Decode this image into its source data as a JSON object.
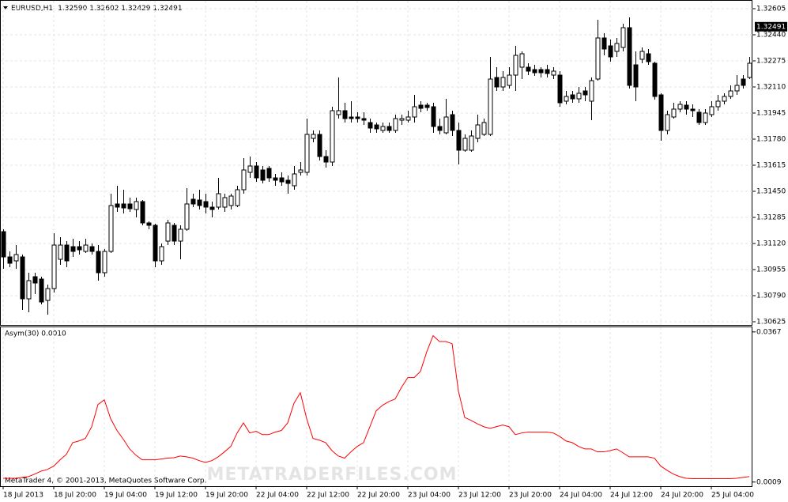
{
  "chart_data": [
    {
      "type": "candlestick",
      "title": "EURUSD,H1",
      "subtitle": "1.32590 1.32602 1.32429 1.32491",
      "ylim": [
        1.30605,
        1.3264
      ],
      "yticks": [
        1.32605,
        {
          "value": 1.3244,
          "label": "1.32440"
        },
        1.32275,
        {
          "value": 1.3211,
          "label": "1.32110"
        },
        1.31945,
        {
          "value": 1.3178,
          "label": "1.31780"
        },
        1.31615,
        {
          "value": 1.3145,
          "label": "1.31450"
        },
        1.31285,
        {
          "value": 1.3112,
          "label": "1.31120"
        },
        1.30955,
        {
          "value": 1.3079,
          "label": "1.30790"
        },
        1.30625
      ],
      "price_label": {
        "value": 1.32491,
        "label": "1.32491"
      },
      "grid": true,
      "up_color": "#ffffff",
      "down_color": "#000000",
      "open": [
        1.31195,
        1.31035,
        1.3101,
        1.31035,
        1.3077,
        1.3091,
        1.30895,
        1.3076,
        1.30835,
        1.3102,
        1.3111,
        1.311,
        1.311,
        1.3107,
        1.311,
        1.3107,
        1.30935,
        1.3107,
        1.3137,
        1.3137,
        1.3137,
        1.31335,
        1.31385,
        1.3125,
        1.31235,
        1.3101,
        1.31135,
        1.31235,
        1.31135,
        1.3121,
        1.314,
        1.31395,
        1.31385,
        1.3135,
        1.3135,
        1.3135,
        1.3136,
        1.3136,
        1.3146,
        1.3157,
        1.3161,
        1.31585,
        1.31595,
        1.31535,
        1.31535,
        1.3152,
        1.31485,
        1.3157,
        1.3157,
        1.31785,
        1.3181,
        1.3167,
        1.31635,
        1.31935,
        1.3196,
        1.3192,
        1.3192,
        1.3191,
        1.31885,
        1.3187,
        1.31835,
        1.3186,
        1.31835,
        1.319,
        1.319,
        1.3192,
        1.31995,
        1.31995,
        1.31985,
        1.3186,
        1.3182,
        1.31935,
        1.31835,
        1.3171,
        1.3171,
        1.31785,
        1.3181,
        1.3181,
        1.3217,
        1.3211,
        1.3212,
        1.32185,
        1.32235,
        1.32235,
        1.3222,
        1.3222,
        1.3222,
        1.32185,
        1.32185,
        1.3202,
        1.3206,
        1.32035,
        1.32085,
        1.3202,
        1.3216,
        1.3242,
        1.3237,
        1.32335,
        1.3236,
        1.32485,
        1.3225,
        1.32285,
        1.3232,
        1.3226,
        1.3206,
        1.31835,
        1.3192,
        1.3197,
        1.31995,
        1.3197,
        1.3195,
        1.31885,
        1.31935,
        1.31985,
        1.3202,
        1.3205,
        1.32085,
        1.3216,
        1.3217
      ],
      "high": [
        1.3121,
        1.3107,
        1.3111,
        1.3105,
        1.30935,
        1.30935,
        1.3091,
        1.3086,
        1.31185,
        1.3116,
        1.31135,
        1.3115,
        1.31135,
        1.3115,
        1.3112,
        1.3111,
        1.31085,
        1.31435,
        1.31485,
        1.3146,
        1.3141,
        1.3141,
        1.31395,
        1.3126,
        1.31245,
        1.3112,
        1.3127,
        1.3125,
        1.31235,
        1.3147,
        1.31435,
        1.3146,
        1.31435,
        1.31385,
        1.31535,
        1.31435,
        1.31435,
        1.31485,
        1.3166,
        1.3167,
        1.31635,
        1.3161,
        1.3161,
        1.3156,
        1.3157,
        1.3155,
        1.3161,
        1.31635,
        1.3191,
        1.31835,
        1.31835,
        1.3171,
        1.31985,
        1.3217,
        1.3201,
        1.3202,
        1.3195,
        1.3195,
        1.3191,
        1.31885,
        1.31885,
        1.31885,
        1.31935,
        1.31935,
        1.3196,
        1.3206,
        1.3202,
        1.3201,
        1.3201,
        1.3191,
        1.32035,
        1.3196,
        1.31885,
        1.3181,
        1.31835,
        1.31935,
        1.3191,
        1.323,
        1.32235,
        1.3221,
        1.32235,
        1.3237,
        1.32335,
        1.3226,
        1.3225,
        1.32235,
        1.3225,
        1.32235,
        1.3221,
        1.32085,
        1.32085,
        1.3211,
        1.3211,
        1.3217,
        1.32535,
        1.3245,
        1.3241,
        1.3242,
        1.3251,
        1.3255,
        1.32335,
        1.3236,
        1.3235,
        1.3227,
        1.3207,
        1.3196,
        1.3201,
        1.3202,
        1.3202,
        1.32,
        1.3197,
        1.3197,
        1.3202,
        1.3206,
        1.3207,
        1.3212,
        1.32185,
        1.32185,
        1.323
      ],
      "low": [
        1.3096,
        1.3097,
        1.3096,
        1.307,
        1.30685,
        1.308,
        1.30735,
        1.3067,
        1.3081,
        1.30985,
        1.3097,
        1.31035,
        1.3105,
        1.3106,
        1.3105,
        1.30885,
        1.3091,
        1.3106,
        1.3132,
        1.3131,
        1.3132,
        1.31285,
        1.31235,
        1.3121,
        1.3097,
        1.30985,
        1.3111,
        1.3111,
        1.3102,
        1.312,
        1.3135,
        1.31335,
        1.3131,
        1.31285,
        1.31335,
        1.3132,
        1.31335,
        1.3135,
        1.31435,
        1.31535,
        1.3151,
        1.315,
        1.3151,
        1.31485,
        1.31485,
        1.31435,
        1.3146,
        1.3155,
        1.3155,
        1.3176,
        1.31645,
        1.316,
        1.3161,
        1.3191,
        1.31885,
        1.31885,
        1.31885,
        1.3187,
        1.3182,
        1.3182,
        1.3182,
        1.3182,
        1.3182,
        1.3187,
        1.31885,
        1.31885,
        1.3195,
        1.3196,
        1.3182,
        1.3181,
        1.3181,
        1.318,
        1.3162,
        1.317,
        1.317,
        1.3176,
        1.318,
        1.318,
        1.32085,
        1.32085,
        1.321,
        1.32085,
        1.3216,
        1.32185,
        1.3218,
        1.3217,
        1.3217,
        1.3216,
        1.31985,
        1.32,
        1.3201,
        1.3201,
        1.3202,
        1.319,
        1.3215,
        1.3231,
        1.3227,
        1.323,
        1.32335,
        1.321,
        1.3202,
        1.3226,
        1.3225,
        1.3203,
        1.3177,
        1.3181,
        1.3191,
        1.3195,
        1.31935,
        1.3192,
        1.3187,
        1.3187,
        1.3192,
        1.3196,
        1.32,
        1.32035,
        1.3206,
        1.321,
        1.3216
      ],
      "close": [
        1.31035,
        1.30995,
        1.3105,
        1.3077,
        1.30885,
        1.3087,
        1.3075,
        1.30835,
        1.3111,
        1.3111,
        1.3101,
        1.3107,
        1.3108,
        1.3111,
        1.3107,
        1.30935,
        1.3107,
        1.3136,
        1.3135,
        1.31345,
        1.3134,
        1.31385,
        1.3125,
        1.31235,
        1.3101,
        1.311,
        1.3125,
        1.31135,
        1.3121,
        1.3137,
        1.3137,
        1.3136,
        1.3135,
        1.31335,
        1.31435,
        1.3141,
        1.3142,
        1.3146,
        1.31585,
        1.3161,
        1.31535,
        1.3152,
        1.31535,
        1.3152,
        1.3151,
        1.315,
        1.3156,
        1.31585,
        1.3181,
        1.3181,
        1.3167,
        1.31635,
        1.3196,
        1.3196,
        1.3191,
        1.3191,
        1.3191,
        1.319,
        1.3185,
        1.31845,
        1.3186,
        1.31835,
        1.3191,
        1.3191,
        1.3192,
        1.31985,
        1.31975,
        1.3198,
        1.3186,
        1.31835,
        1.3192,
        1.31835,
        1.3171,
        1.31785,
        1.318,
        1.3187,
        1.31885,
        1.3216,
        1.3211,
        1.3217,
        1.32185,
        1.3231,
        1.3232,
        1.3221,
        1.322,
        1.322,
        1.32195,
        1.3221,
        1.3201,
        1.3205,
        1.32035,
        1.3207,
        1.3206,
        1.3215,
        1.3242,
        1.3235,
        1.323,
        1.32385,
        1.32485,
        1.3212,
        1.3211,
        1.32335,
        1.3227,
        1.3205,
        1.31835,
        1.31935,
        1.3197,
        1.32,
        1.3197,
        1.3196,
        1.31885,
        1.31945,
        1.31985,
        1.3202,
        1.3205,
        1.32085,
        1.3212,
        1.3212,
        1.3226
      ]
    },
    {
      "type": "line",
      "title": "Asym(30) 0.0010",
      "color": "#ff0000",
      "ylim": [
        0.0001,
        0.0378
      ],
      "yticks": [
        0.0367,
        0.0009
      ],
      "grid": true,
      "categories": [
        "18 Jul 2013",
        null,
        null,
        null,
        null,
        null,
        null,
        null,
        "18 Jul 20:00",
        null,
        null,
        null,
        null,
        null,
        null,
        null,
        "19 Jul 04:00",
        null,
        null,
        null,
        null,
        null,
        null,
        null,
        "19 Jul 12:00",
        null,
        null,
        null,
        null,
        null,
        null,
        null,
        "19 Jul 20:00",
        null,
        null,
        null,
        null,
        null,
        null,
        null,
        "22 Jul 04:00",
        null,
        null,
        null,
        null,
        null,
        null,
        null,
        "22 Jul 12:00",
        null,
        null,
        null,
        null,
        null,
        null,
        null,
        "22 Jul 20:00",
        null,
        null,
        null,
        null,
        null,
        null,
        null,
        "23 Jul 04:00",
        null,
        null,
        null,
        null,
        null,
        null,
        null,
        "23 Jul 12:00",
        null,
        null,
        null,
        null,
        null,
        null,
        null,
        "23 Jul 20:00",
        null,
        null,
        null,
        null,
        null,
        null,
        null,
        "24 Jul 04:00",
        null,
        null,
        null,
        null,
        null,
        null,
        null,
        "24 Jul 12:00",
        null,
        null,
        null,
        null,
        null,
        null,
        null,
        "24 Jul 20:00",
        null,
        null,
        null,
        null,
        null,
        null,
        null,
        "25 Jul 04:00",
        null,
        null,
        null,
        null,
        null,
        null
      ],
      "values": [
        0.0018,
        0.0018,
        0.0018,
        0.002,
        0.0022,
        0.0028,
        0.0035,
        0.0039,
        0.0047,
        0.0062,
        0.0075,
        0.0103,
        0.0107,
        0.0113,
        0.0141,
        0.0194,
        0.0205,
        0.016,
        0.0132,
        0.0111,
        0.0088,
        0.0073,
        0.0062,
        0.0062,
        0.0062,
        0.0064,
        0.0066,
        0.0067,
        0.0071,
        0.0069,
        0.0066,
        0.006,
        0.0056,
        0.006,
        0.0069,
        0.0081,
        0.0094,
        0.0126,
        0.015,
        0.0126,
        0.013,
        0.0122,
        0.0122,
        0.0128,
        0.0132,
        0.015,
        0.0197,
        0.0222,
        0.016,
        0.0113,
        0.0109,
        0.0103,
        0.0084,
        0.0071,
        0.0066,
        0.0081,
        0.0094,
        0.0103,
        0.0141,
        0.0179,
        0.0192,
        0.0201,
        0.0207,
        0.0235,
        0.0258,
        0.0258,
        0.0273,
        0.032,
        0.0358,
        0.0344,
        0.0344,
        0.0339,
        0.0226,
        0.0163,
        0.0156,
        0.0148,
        0.0141,
        0.0137,
        0.0141,
        0.0145,
        0.0141,
        0.0122,
        0.0126,
        0.0128,
        0.0128,
        0.0128,
        0.0128,
        0.0126,
        0.0118,
        0.0107,
        0.0103,
        0.0094,
        0.0088,
        0.0088,
        0.0081,
        0.0081,
        0.0084,
        0.0088,
        0.0079,
        0.0069,
        0.0069,
        0.0069,
        0.0069,
        0.0066,
        0.0047,
        0.0037,
        0.0028,
        0.0022,
        0.0018,
        0.0017,
        0.0017,
        0.0017,
        0.0017,
        0.0017,
        0.0017,
        0.0017,
        0.0018,
        0.002,
        0.0022
      ]
    }
  ],
  "copyright": "MetaTrader 4, © 2001-2013, MetaQuotes Software Corp.",
  "watermark": "METATRADERFILES.COM"
}
